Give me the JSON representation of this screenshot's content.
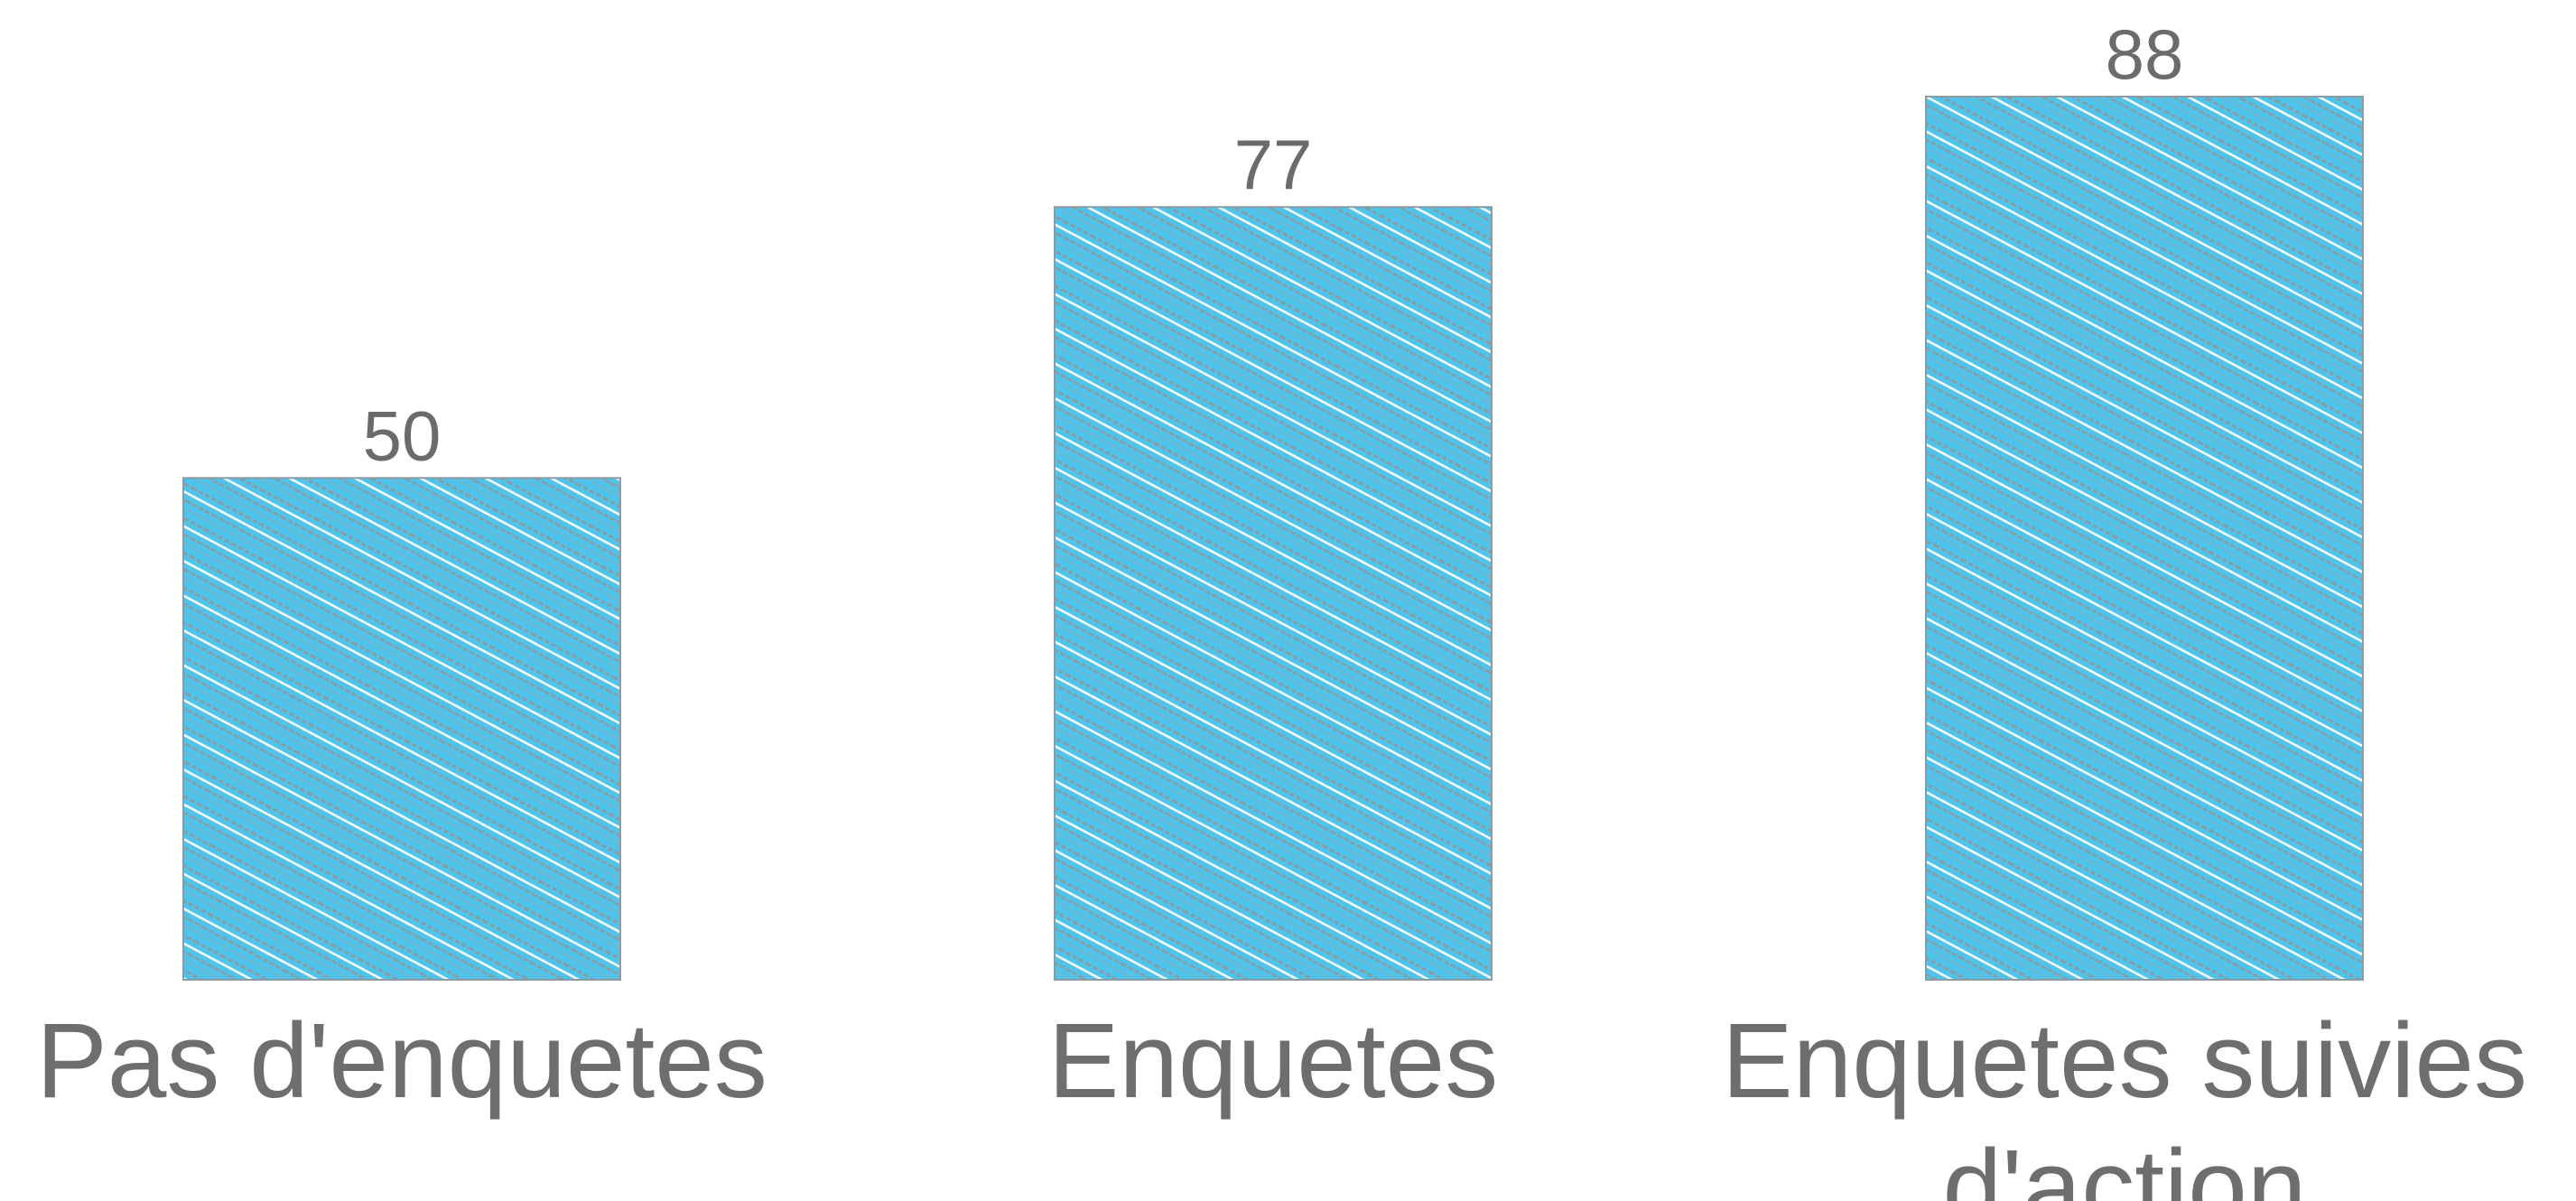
{
  "chart_data": {
    "type": "bar",
    "categories": [
      "Pas d'enquetes",
      "Enquetes",
      "Enquetes suivies d'action"
    ],
    "values": [
      50,
      77,
      88
    ],
    "data_labels": [
      "50",
      "77",
      "88"
    ],
    "title": "",
    "xlabel": "",
    "ylabel": "",
    "ylim": [
      0,
      88
    ],
    "grid": false,
    "legend": "none",
    "colors": {
      "bar_fill": "#4fc3ea",
      "bar_hatch": "#8c9aa3",
      "text": "#6e6e6e"
    }
  }
}
